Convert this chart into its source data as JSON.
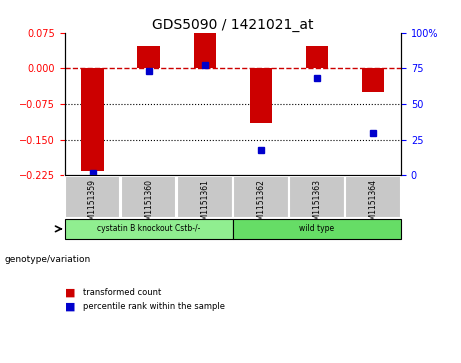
{
  "title": "GDS5090 / 1421021_at",
  "samples": [
    "GSM1151359",
    "GSM1151360",
    "GSM1151361",
    "GSM1151362",
    "GSM1151363",
    "GSM1151364"
  ],
  "transformed_counts": [
    -0.215,
    0.048,
    0.075,
    -0.115,
    0.048,
    -0.05
  ],
  "percentile_ranks": [
    2,
    73,
    77,
    18,
    68,
    30
  ],
  "left_ylim": [
    -0.225,
    0.075
  ],
  "left_yticks": [
    0.075,
    0,
    -0.075,
    -0.15,
    -0.225
  ],
  "right_ylim": [
    0,
    100
  ],
  "right_yticks": [
    100,
    75,
    50,
    25,
    0
  ],
  "bar_color": "#cc0000",
  "dot_color": "#0000cc",
  "groups": [
    {
      "label": "cystatin B knockout Cstb-/-",
      "sample_indices": [
        0,
        1,
        2
      ],
      "color": "#90ee90"
    },
    {
      "label": "wild type",
      "sample_indices": [
        3,
        4,
        5
      ],
      "color": "#66dd66"
    }
  ],
  "legend_items": [
    {
      "label": "transformed count",
      "color": "#cc0000"
    },
    {
      "label": "percentile rank within the sample",
      "color": "#0000cc"
    }
  ],
  "genotype_label": "genotype/variation",
  "dotted_lines": [
    -0.075,
    -0.15
  ],
  "sample_box_color": "#c8c8c8",
  "background_color": "#ffffff"
}
